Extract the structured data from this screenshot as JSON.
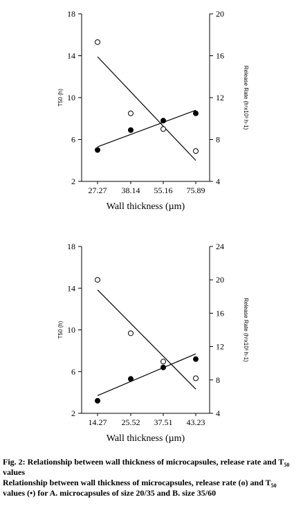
{
  "chart_data": [
    {
      "type": "scatter",
      "categories": [
        "27.27",
        "38.14",
        "55.16",
        "75.89"
      ],
      "xlabel": "Wall thickness (µm)",
      "ylabel_left": "T50 (h)",
      "ylabel_right": "Release Rate (h¹x10³ h-1)",
      "yticks_left": [
        2,
        6,
        10,
        14,
        18
      ],
      "yticks_right": [
        4,
        8,
        12,
        16,
        20
      ],
      "ylim_left": [
        2,
        18
      ],
      "ylim_right": [
        4,
        20
      ],
      "grid": false,
      "series": [
        {
          "marker": "filled",
          "axis": "left",
          "values": [
            5.0,
            6.9,
            7.8,
            8.5
          ],
          "trend": [
            5.3,
            8.8
          ]
        },
        {
          "marker": "open",
          "axis": "right",
          "values": [
            17.3,
            10.5,
            9.0,
            6.9
          ],
          "trend": [
            15.9,
            6.0
          ]
        }
      ]
    },
    {
      "type": "scatter",
      "categories": [
        "14.27",
        "25.52",
        "37.51",
        "43.23"
      ],
      "xlabel": "Wall thickness (µm)",
      "ylabel_left": "T50 (h)",
      "ylabel_right": "Release Rate (h¹x10³ h-1)",
      "yticks_left": [
        2,
        6,
        10,
        14,
        18
      ],
      "yticks_right": [
        4,
        8,
        12,
        16,
        20,
        24
      ],
      "ylim_left": [
        2,
        18
      ],
      "ylim_right": [
        4,
        24
      ],
      "grid": false,
      "series": [
        {
          "marker": "filled",
          "axis": "left",
          "values": [
            3.2,
            5.3,
            6.4,
            7.2
          ],
          "trend": [
            3.7,
            7.7
          ]
        },
        {
          "marker": "open",
          "axis": "right",
          "values": [
            20.0,
            13.6,
            10.2,
            8.2
          ],
          "trend": [
            18.8,
            6.9
          ]
        }
      ]
    }
  ],
  "caption": {
    "line1_pre": "Fig. 2: Relationship between wall thickness of microcapsules, release rate and T",
    "line1_sub": "50",
    "line1_post": " values",
    "line2_pre": "Relationship between wall thickness of microcapsules, release rate (o) and T",
    "line2_sub": "50",
    "line2_mid": " values (•) for A. microcapsules of size 20/35 and B. size 35/60"
  }
}
